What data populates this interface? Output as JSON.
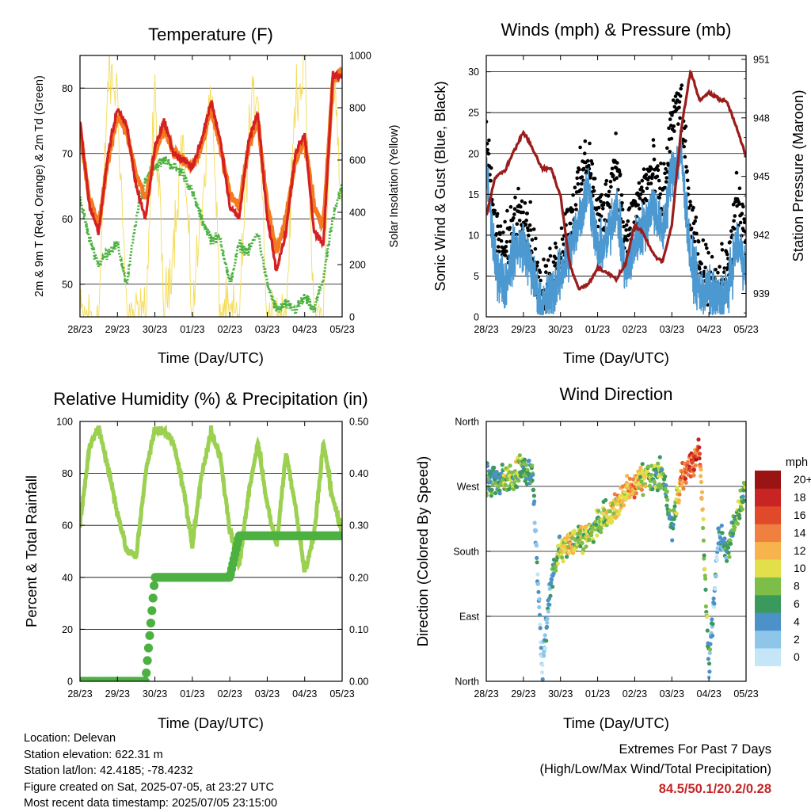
{
  "x_ticks": [
    "28/23",
    "29/23",
    "30/23",
    "01/23",
    "02/23",
    "03/23",
    "04/23",
    "05/23"
  ],
  "colors": {
    "temp_2m": "#d42020",
    "temp_9m": "#f47a20",
    "dewpoint": "#4cb140",
    "solar": "#f3dc5a",
    "gust": "#000000",
    "sonic_wind": "#4c98d0",
    "pressure": "#9b1c1c",
    "rh": "#9bd050",
    "precip": "#4cb140",
    "extremes": "#c42526"
  },
  "panels": {
    "temperature": {
      "title": "Temperature (F)",
      "xlabel": "Time (Day/UTC)",
      "ylabel_left": "2m & 9m T (Red, Orange) & 2m Td (Green)",
      "ylabel_right": "Solar Insolation (Yellow)",
      "yticks_left": [
        "50",
        "60",
        "70",
        "80"
      ],
      "yticks_right": [
        "0",
        "200",
        "400",
        "600",
        "800",
        "1000"
      ]
    },
    "winds": {
      "title": "Winds (mph) & Pressure (mb)",
      "xlabel": "Time (Day/UTC)",
      "ylabel_left": "Sonic Wind & Gust (Blue, Black)",
      "ylabel_right": "Station Pressure (Maroon)",
      "yticks_left": [
        "0",
        "5",
        "10",
        "15",
        "20",
        "25",
        "30"
      ],
      "yticks_right": [
        "939",
        "942",
        "945",
        "948",
        "951"
      ]
    },
    "humidity": {
      "title": "Relative Humidity (%) & Precipitation (in)",
      "xlabel": "Time (Day/UTC)",
      "ylabel_left": "Percent & Total Rainfall",
      "yticks_left": [
        "0",
        "20",
        "40",
        "60",
        "80",
        "100"
      ],
      "yticks_right": [
        "0.00",
        "0.10",
        "0.20",
        "0.30",
        "0.40",
        "0.50"
      ]
    },
    "direction": {
      "title": "Wind Direction",
      "xlabel": "Time (Day/UTC)",
      "ylabel_left": "Direction (Colored By Speed)",
      "yticks_left": [
        "North",
        "East",
        "South",
        "West",
        "North"
      ],
      "colorbar_title": "mph",
      "colorbar_labels": [
        "0",
        "2",
        "4",
        "6",
        "8",
        "10",
        "12",
        "14",
        "16",
        "18",
        "20+"
      ],
      "colorbar_colors": [
        "#c4e6f6",
        "#8ec6ea",
        "#4c91c8",
        "#3a9a5e",
        "#7cbe48",
        "#e2df4a",
        "#f8b44c",
        "#f08040",
        "#e04a2a",
        "#c82424",
        "#9a1414"
      ]
    }
  },
  "station": {
    "location": "Location: Delevan",
    "elevation": "Station elevation: 622.31 m",
    "latlon": "Station lat/lon: 42.4185; -78.4232",
    "created": "Figure created on Sat, 2025-07-05, at 23:27 UTC",
    "latest": "Most recent data timestamp: 2025/07/05 23:15:00"
  },
  "extremes": {
    "title": "Extremes For Past 7 Days",
    "subtitle": "(High/Low/Max Wind/Total Precipitation)",
    "values": "84.5/50.1/20.2/0.28"
  },
  "chart_data": [
    {
      "type": "line",
      "title": "Temperature (F)",
      "xlabel": "Time (Day/UTC)",
      "x": [
        0,
        0.25,
        0.5,
        0.75,
        1,
        1.25,
        1.5,
        1.75,
        2,
        2.25,
        2.5,
        2.75,
        3,
        3.25,
        3.5,
        3.75,
        4,
        4.25,
        4.5,
        4.75,
        5,
        5.25,
        5.5,
        5.75,
        6,
        6.25,
        6.5,
        6.75,
        7
      ],
      "ylim": [
        45,
        85
      ],
      "y2lim": [
        0,
        1000
      ],
      "series": [
        {
          "axis": "left",
          "values": [
            75,
            62,
            58,
            70,
            77,
            74,
            65,
            60,
            71,
            75,
            70,
            69,
            68,
            72,
            78,
            72,
            62,
            60,
            72,
            76,
            60,
            52,
            58,
            70,
            73,
            58,
            56,
            82,
            82
          ]
        },
        {
          "axis": "left",
          "values": [
            74,
            63,
            59,
            69,
            76,
            73,
            67,
            63,
            70,
            74,
            70,
            69,
            68,
            71,
            77,
            71,
            64,
            62,
            71,
            75,
            62,
            55,
            60,
            69,
            72,
            62,
            59,
            81,
            83
          ]
        },
        {
          "axis": "left",
          "values": [
            63,
            57,
            53,
            55,
            56,
            50,
            60,
            66,
            68,
            69,
            68,
            67,
            64,
            60,
            57,
            57,
            50,
            56,
            55,
            58,
            50,
            46,
            47,
            46,
            48,
            46,
            51,
            60,
            65
          ]
        },
        {
          "axis": "right",
          "values": [
            0,
            0,
            0,
            920,
            860,
            0,
            0,
            0,
            850,
            0,
            300,
            700,
            0,
            420,
            900,
            0,
            0,
            0,
            700,
            900,
            0,
            0,
            0,
            850,
            950,
            0,
            0,
            980,
            400
          ]
        }
      ]
    },
    {
      "type": "line",
      "title": "Winds (mph) & Pressure (mb)",
      "xlabel": "Time (Day/UTC)",
      "x": [
        0,
        0.25,
        0.5,
        0.75,
        1,
        1.25,
        1.5,
        1.75,
        2,
        2.25,
        2.5,
        2.75,
        3,
        3.25,
        3.5,
        3.75,
        4,
        4.25,
        4.5,
        4.75,
        5,
        5.25,
        5.5,
        5.75,
        6,
        6.25,
        6.5,
        6.75,
        7
      ],
      "ylim": [
        0,
        32
      ],
      "y2lim": [
        937.8,
        951.2
      ],
      "series": [
        {
          "axis": "left",
          "values": [
            22,
            10,
            8,
            12,
            14,
            9,
            2,
            6,
            8,
            12,
            16,
            20,
            12,
            14,
            20,
            9,
            13,
            16,
            18,
            14,
            24,
            26,
            12,
            6,
            5,
            4,
            6,
            14,
            10
          ]
        },
        {
          "axis": "left",
          "values": [
            18,
            6,
            4,
            8,
            9,
            5,
            1,
            3,
            5,
            8,
            12,
            16,
            8,
            9,
            14,
            5,
            9,
            11,
            14,
            10,
            18,
            20,
            7,
            3,
            3,
            2,
            3,
            9,
            6
          ]
        },
        {
          "axis": "right",
          "values": [
            943,
            945,
            945.3,
            946.3,
            947.3,
            946.4,
            945.4,
            945.4,
            944,
            940.5,
            939.2,
            939.5,
            940.3,
            940.1,
            939.7,
            940.5,
            942.5,
            942,
            941,
            940.6,
            942.5,
            947.4,
            950.4,
            948.9,
            949.3,
            949,
            948.8,
            947.5,
            946
          ]
        }
      ]
    },
    {
      "type": "line",
      "title": "Relative Humidity (%) & Precipitation (in)",
      "xlabel": "Time (Day/UTC)",
      "x": [
        0,
        0.25,
        0.5,
        0.75,
        1,
        1.25,
        1.5,
        1.75,
        2,
        2.25,
        2.5,
        2.75,
        3,
        3.25,
        3.5,
        3.75,
        4,
        4.25,
        4.5,
        4.75,
        5,
        5.25,
        5.5,
        5.75,
        6,
        6.25,
        6.5,
        6.75,
        7
      ],
      "ylim": [
        0,
        100
      ],
      "y2lim": [
        0,
        0.5
      ],
      "series": [
        {
          "axis": "left",
          "values": [
            60,
            90,
            98,
            82,
            65,
            50,
            48,
            80,
            97,
            96,
            92,
            75,
            52,
            80,
            96,
            86,
            58,
            45,
            72,
            92,
            68,
            52,
            88,
            68,
            42,
            56,
            92,
            70,
            58
          ]
        },
        {
          "axis": "right",
          "values": [
            0,
            0,
            0,
            0,
            0,
            0,
            0,
            0,
            0.2,
            0.2,
            0.2,
            0.2,
            0.2,
            0.2,
            0.2,
            0.2,
            0.2,
            0.28,
            0.28,
            0.28,
            0.28,
            0.28,
            0.28,
            0.28,
            0.28,
            0.28,
            0.28,
            0.28,
            0.28
          ]
        }
      ]
    },
    {
      "type": "scatter",
      "title": "Wind Direction",
      "xlabel": "Time (Day/UTC)",
      "x": [
        0,
        0.25,
        0.5,
        0.75,
        1,
        1.25,
        1.5,
        1.75,
        2,
        2.25,
        2.5,
        2.75,
        3,
        3.25,
        3.5,
        3.75,
        4,
        4.25,
        4.5,
        4.75,
        5,
        5.25,
        5.5,
        5.75,
        6,
        6.25,
        6.5,
        6.75,
        7
      ],
      "ylim": [
        0,
        360
      ],
      "series": [
        {
          "values": [
            280,
            275,
            280,
            285,
            300,
            285,
            20,
            140,
            185,
            190,
            200,
            205,
            215,
            230,
            240,
            260,
            270,
            285,
            280,
            290,
            210,
            285,
            300,
            320,
            15,
            200,
            180,
            230,
            270
          ]
        },
        {
          "values": [
            8,
            6,
            9,
            10,
            8,
            6,
            3,
            5,
            10,
            11,
            10,
            9,
            9,
            11,
            13,
            12,
            14,
            11,
            8,
            9,
            5,
            15,
            17,
            16,
            5,
            4,
            7,
            8,
            9
          ]
        }
      ]
    }
  ]
}
